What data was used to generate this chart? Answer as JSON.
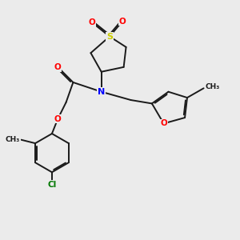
{
  "bg_color": "#ebebeb",
  "bond_color": "#1a1a1a",
  "bond_width": 1.4,
  "dbo": 0.055,
  "S_color": "#cccc00",
  "O_color": "#ff0000",
  "N_color": "#0000ff",
  "Cl_color": "#007700",
  "xlim": [
    0,
    10
  ],
  "ylim": [
    0,
    10
  ]
}
